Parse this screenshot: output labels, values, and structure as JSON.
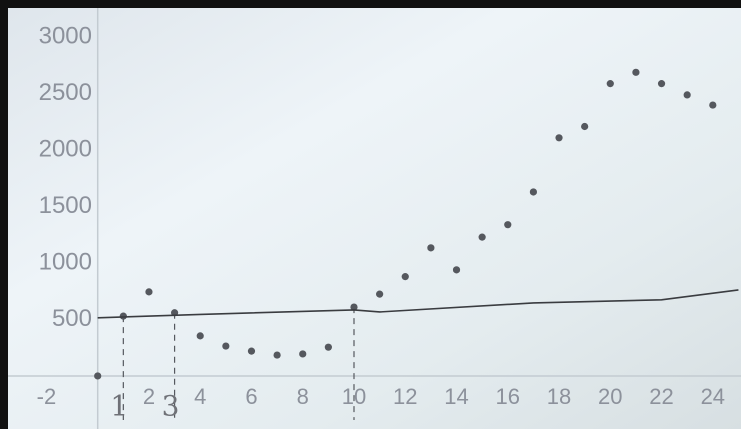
{
  "chart_data": {
    "type": "scatter",
    "xlim": [
      -3.5,
      25.1
    ],
    "ylim": [
      -470,
      3260
    ],
    "xticks": [
      -2,
      2,
      4,
      6,
      8,
      10,
      12,
      14,
      16,
      18,
      20,
      22,
      24
    ],
    "yticks": [
      500,
      1000,
      1500,
      2000,
      2500,
      3000
    ],
    "series": [
      {
        "color": "#55585e",
        "style": "points",
        "x": [
          0,
          1,
          2,
          3,
          4,
          5,
          6,
          7,
          8,
          9,
          10,
          11,
          12,
          13,
          14,
          15,
          16,
          17,
          18,
          19,
          20,
          21,
          22,
          23,
          24
        ],
        "values": [
          0,
          530,
          745,
          560,
          355,
          265,
          220,
          185,
          195,
          255,
          610,
          725,
          880,
          1135,
          940,
          1230,
          1340,
          1630,
          2110,
          2210,
          2590,
          2690,
          2590,
          2490,
          2400
        ]
      },
      {
        "color": "#3a3c40",
        "style": "line",
        "x": [
          0,
          4,
          10,
          11,
          17,
          22,
          25
        ],
        "values": [
          515,
          545,
          585,
          567,
          647,
          675,
          762
        ]
      }
    ],
    "guides": [
      1,
      3,
      10
    ],
    "annotations": [
      {
        "label": "1",
        "x": 1
      },
      {
        "label": "3",
        "x": 3
      }
    ]
  }
}
